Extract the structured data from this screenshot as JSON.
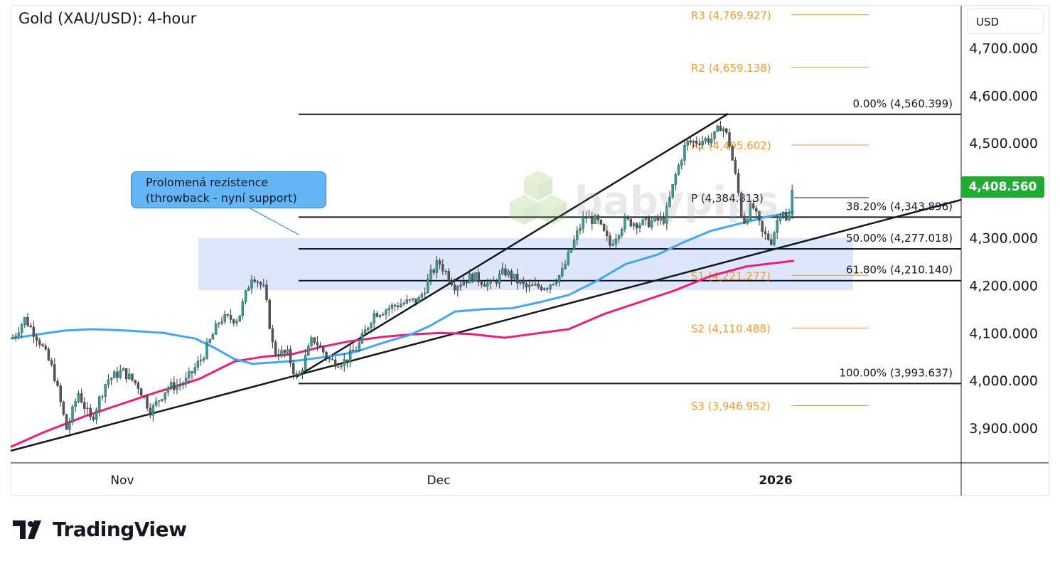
{
  "header": {
    "title": "Gold (XAU/USD): 4-hour"
  },
  "axis": {
    "currency": "USD"
  },
  "price": {
    "current": "4,408.560",
    "color": "#22ab33"
  },
  "callout": {
    "line1": "Prolomená rezistence",
    "line2": "(throwback - nyní support)"
  },
  "watermark": {
    "text": "babypips",
    "icon": "cube-cluster-icon"
  },
  "footer": {
    "logo_text": "TradingView",
    "logo_icon": "tradingview-logo-icon"
  },
  "chart_data": {
    "type": "candlestick",
    "ylim": [
      3830,
      4760
    ],
    "y_ticks": [
      {
        "value": 4700,
        "label": "4,700.000"
      },
      {
        "value": 4600,
        "label": "4,600.000"
      },
      {
        "value": 4500,
        "label": "4,500.000"
      },
      {
        "value": 4300,
        "label": "4,300.000"
      },
      {
        "value": 4200,
        "label": "4,200.000"
      },
      {
        "value": 4100,
        "label": "4,100.000"
      },
      {
        "value": 4000,
        "label": "4,000.000"
      },
      {
        "value": 3900,
        "label": "3,900.000"
      }
    ],
    "x_ticks": [
      {
        "label": "Nov",
        "bold": false
      },
      {
        "label": "Dec",
        "bold": false
      },
      {
        "label": "2026",
        "bold": true
      }
    ],
    "pivots": [
      {
        "label": "R3 (4,769.927)",
        "value": 4769.927
      },
      {
        "label": "R2 (4,659.138)",
        "value": 4659.138
      },
      {
        "label": "R1 (4,495.602)",
        "value": 4495.602
      },
      {
        "label": "P (4,384.813)",
        "value": 4384.813
      },
      {
        "label": "S1 (4,221.277)",
        "value": 4221.277
      },
      {
        "label": "S2 (4,110.488)",
        "value": 4110.488
      },
      {
        "label": "S3 (3,946.952)",
        "value": 3946.952
      }
    ],
    "fibonacci": [
      {
        "label": "0.00% (4,560.399)",
        "value": 4560.399
      },
      {
        "label": "38.20% (4,343.896)",
        "value": 4343.896
      },
      {
        "label": "50.00% (4,277.018)",
        "value": 4277.018
      },
      {
        "label": "61.80% (4,210.140)",
        "value": 4210.14
      },
      {
        "label": "100.00% (3,993.637)",
        "value": 3993.637
      }
    ],
    "support_zone": [
      4190,
      4300
    ],
    "colors": {
      "up": "#26a69a",
      "down": "#555555",
      "wick": "#333333",
      "ma_blue": "#42a5f5",
      "ma_magenta": "#e91e7a",
      "pivot": "#f59a23",
      "fib": "#131722",
      "zone": "#dde6fb"
    }
  }
}
